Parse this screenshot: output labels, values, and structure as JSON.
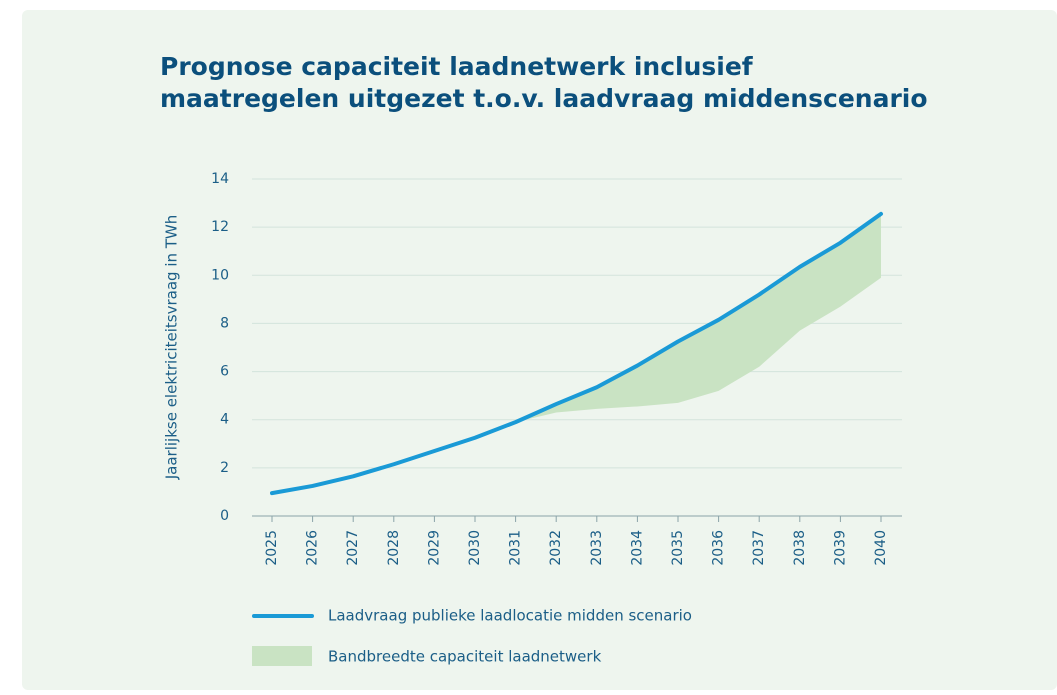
{
  "chart_data": {
    "type": "line",
    "title": [
      "Prognose capaciteit laadnetwerk inclusief",
      "maatregelen uitgezet t.o.v. laadvraag middenscenario"
    ],
    "y_label": "Jaarlijkse elektriciteitsvraag in TWh",
    "categories": [
      "2025",
      "2026",
      "2027",
      "2028",
      "2029",
      "2030",
      "2031",
      "2032",
      "2033",
      "2034",
      "2035",
      "2036",
      "2037",
      "2038",
      "2039",
      "2040"
    ],
    "series": [
      {
        "name": "Laadvraag publieke laadlocatie midden scenario",
        "color": "#1a9ad6",
        "values": [
          0.95,
          1.25,
          1.65,
          2.15,
          2.7,
          3.25,
          3.9,
          4.65,
          5.35,
          6.25,
          7.25,
          8.15,
          9.2,
          10.35,
          11.35,
          12.55
        ]
      },
      {
        "name": "Bandbreedte capaciteit laadnetwerk",
        "color": "#c9e3c3",
        "values": [
          null,
          null,
          null,
          null,
          null,
          null,
          3.9,
          4.3,
          4.45,
          4.55,
          4.7,
          5.2,
          6.2,
          7.7,
          8.7,
          9.9
        ]
      }
    ],
    "ylim": [
      0,
      14
    ],
    "yticks": [
      0,
      2,
      4,
      6,
      8,
      10,
      12,
      14
    ],
    "grid": true
  }
}
